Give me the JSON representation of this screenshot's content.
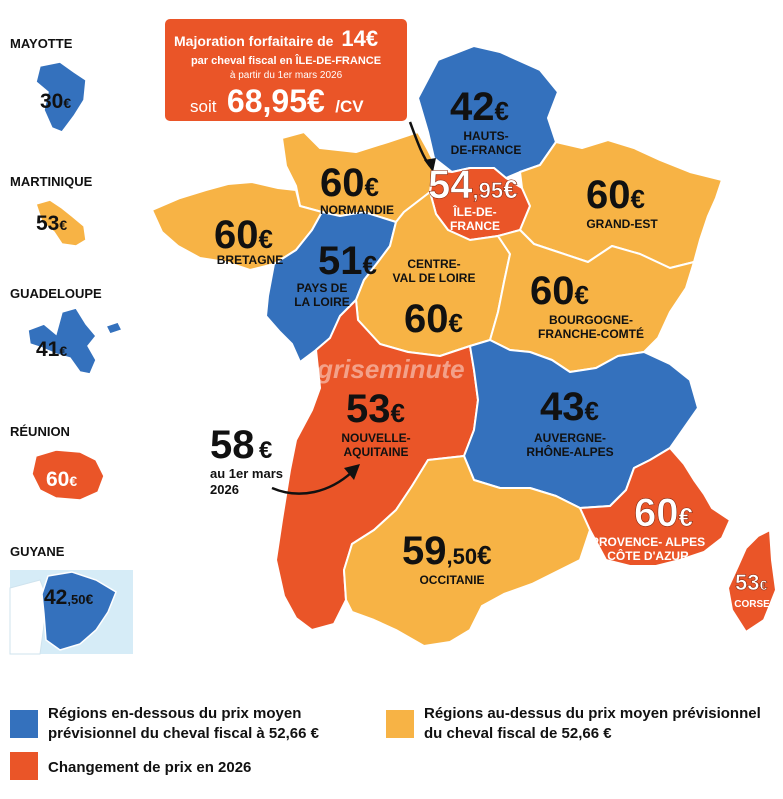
{
  "colors": {
    "below": "#3471bd",
    "above": "#f7b345",
    "change": "#ea5528",
    "border": "#ffffff"
  },
  "callout": {
    "line1_prefix": "Majoration forfaitaire de",
    "line1_value": "14€",
    "line2": "par cheval fiscal en ÎLE-DE-FRANCE",
    "line3": "à partir du 1er mars 2026",
    "line4_prefix": "soit",
    "line4_value": "68,95€",
    "line4_unit": "/CV"
  },
  "naq_note": {
    "value": "58",
    "euro": "€",
    "line1": "au 1er mars",
    "line2": "2026"
  },
  "watermark": "cartegriseminute",
  "regions": [
    {
      "id": "hauts-de-france",
      "name_lines": [
        "HAUTS-",
        "DE-FRANCE"
      ],
      "value": "42",
      "decimals": "",
      "euro": "€",
      "category": "below"
    },
    {
      "id": "normandie",
      "name_lines": [
        "NORMANDIE"
      ],
      "value": "60",
      "decimals": "",
      "euro": "€",
      "category": "above"
    },
    {
      "id": "ile-de-france",
      "name_lines": [
        "ÎLE-DE-",
        "FRANCE"
      ],
      "value": "54",
      "decimals": ",95",
      "euro": "€",
      "category": "change"
    },
    {
      "id": "grand-est",
      "name_lines": [
        "GRAND-EST"
      ],
      "value": "60",
      "decimals": "",
      "euro": "€",
      "category": "above"
    },
    {
      "id": "bretagne",
      "name_lines": [
        "BRETAGNE"
      ],
      "value": "60",
      "decimals": "",
      "euro": "€",
      "category": "above"
    },
    {
      "id": "pays-de-la-loire",
      "name_lines": [
        "PAYS DE",
        "LA LOIRE"
      ],
      "value": "51",
      "decimals": "",
      "euro": "€",
      "category": "below"
    },
    {
      "id": "centre-val-de-loire",
      "name_lines": [
        "CENTRE-",
        "VAL DE LOIRE"
      ],
      "value": "60",
      "decimals": "",
      "euro": "€",
      "category": "above"
    },
    {
      "id": "bourgogne-franche-comte",
      "name_lines": [
        "BOURGOGNE-",
        "FRANCHE-COMTÉ"
      ],
      "value": "60",
      "decimals": "",
      "euro": "€",
      "category": "above"
    },
    {
      "id": "nouvelle-aquitaine",
      "name_lines": [
        "NOUVELLE-",
        "AQUITAINE"
      ],
      "value": "53",
      "decimals": "",
      "euro": "€",
      "category": "change"
    },
    {
      "id": "auvergne-rhone-alpes",
      "name_lines": [
        "AUVERGNE-",
        "RHÔNE-ALPES"
      ],
      "value": "43",
      "decimals": "",
      "euro": "€",
      "category": "below"
    },
    {
      "id": "occitanie",
      "name_lines": [
        "OCCITANIE"
      ],
      "value": "59",
      "decimals": ",50",
      "euro": "€",
      "category": "above"
    },
    {
      "id": "provence-alpes-cote-d-azur",
      "name_lines": [
        "PROVENCE- ALPES",
        "CÔTE D'AZUR"
      ],
      "value": "60",
      "decimals": "",
      "euro": "€",
      "category": "change"
    },
    {
      "id": "corse",
      "name_lines": [
        "CORSE"
      ],
      "value": "53",
      "decimals": "",
      "euro": "€",
      "category": "change"
    }
  ],
  "overseas": [
    {
      "id": "mayotte",
      "title": "MAYOTTE",
      "value": "30",
      "decimals": "",
      "euro": "€",
      "category": "below"
    },
    {
      "id": "martinique",
      "title": "MARTINIQUE",
      "value": "53",
      "decimals": "",
      "euro": "€",
      "category": "above"
    },
    {
      "id": "guadeloupe",
      "title": "GUADELOUPE",
      "value": "41",
      "decimals": "",
      "euro": "€",
      "category": "below"
    },
    {
      "id": "reunion",
      "title": "RÉUNION",
      "value": "60",
      "decimals": "",
      "euro": "€",
      "category": "change"
    },
    {
      "id": "guyane",
      "title": "GUYANE",
      "value": "42",
      "decimals": ",50",
      "euro": "€",
      "category": "below"
    }
  ],
  "legend": [
    {
      "id": "below",
      "lines": [
        "Régions en-dessous du prix moyen",
        "prévisionnel du cheval fiscal à 52,66 €"
      ]
    },
    {
      "id": "above",
      "lines": [
        "Régions au-dessus du prix moyen prévisionnel",
        "du cheval fiscal de 52,66 €"
      ]
    },
    {
      "id": "change",
      "lines": [
        "Changement de prix en 2026"
      ]
    }
  ]
}
